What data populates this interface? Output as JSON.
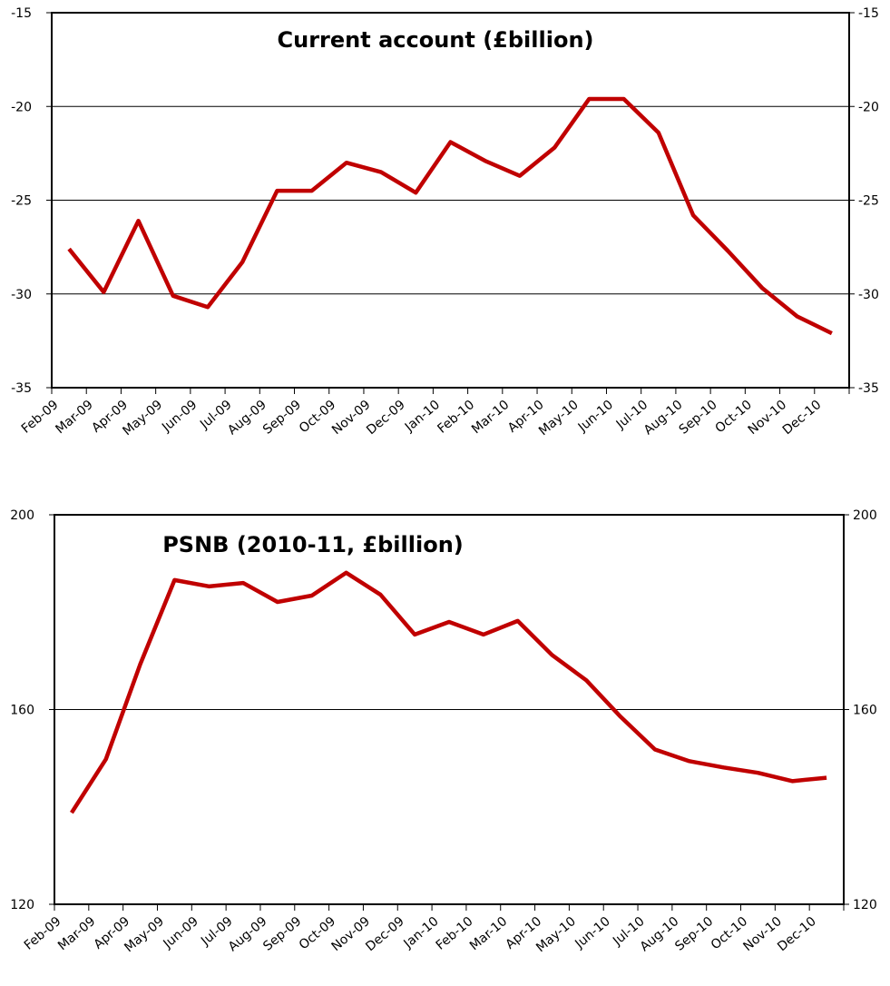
{
  "chart_data": [
    {
      "type": "line",
      "title": "Current account (£billion)",
      "categories": [
        "Feb-09",
        "Mar-09",
        "Apr-09",
        "May-09",
        "Jun-09",
        "Jul-09",
        "Aug-09",
        "Sep-09",
        "Oct-09",
        "Nov-09",
        "Dec-09",
        "Jan-10",
        "Feb-10",
        "Mar-10",
        "Apr-10",
        "May-10",
        "Jun-10",
        "Jul-10",
        "Aug-10",
        "Sep-10",
        "Oct-10",
        "Nov-10",
        "Dec-10"
      ],
      "series": [
        {
          "name": "Current account",
          "color": "#c00000",
          "values": [
            -27.6,
            -29.9,
            -26.1,
            -30.1,
            -30.7,
            -28.3,
            -24.5,
            -24.5,
            -23.0,
            -23.5,
            -24.6,
            -21.9,
            -22.9,
            -23.7,
            -22.2,
            -19.6,
            -19.6,
            -21.4,
            -25.8,
            -27.7,
            -29.7,
            -31.2,
            -32.1
          ]
        }
      ],
      "ylim": [
        -35,
        -15
      ],
      "yticks": [
        -15,
        -20,
        -25,
        -30,
        -35
      ],
      "grid": true
    },
    {
      "type": "line",
      "title": "PSNB (2010-11, £billion)",
      "categories": [
        "Feb-09",
        "Mar-09",
        "Apr-09",
        "May-09",
        "Jun-09",
        "Jul-09",
        "Aug-09",
        "Sep-09",
        "Oct-09",
        "Nov-09",
        "Dec-09",
        "Jan-10",
        "Feb-10",
        "Mar-10",
        "Apr-10",
        "May-10",
        "Jun-10",
        "Jul-10",
        "Aug-10",
        "Sep-10",
        "Oct-10",
        "Nov-10",
        "Dec-10"
      ],
      "series": [
        {
          "name": "PSNB",
          "color": "#c00000",
          "values": [
            138.8,
            149.8,
            169.3,
            186.6,
            185.3,
            186.0,
            182.1,
            183.4,
            188.1,
            183.6,
            175.4,
            178.0,
            175.4,
            178.2,
            171.2,
            166.0,
            158.5,
            151.8,
            149.4,
            148.1,
            147.0,
            145.3,
            146.0
          ]
        }
      ],
      "ylim": [
        120,
        200
      ],
      "yticks": [
        200,
        160,
        120
      ],
      "grid": true
    }
  ]
}
